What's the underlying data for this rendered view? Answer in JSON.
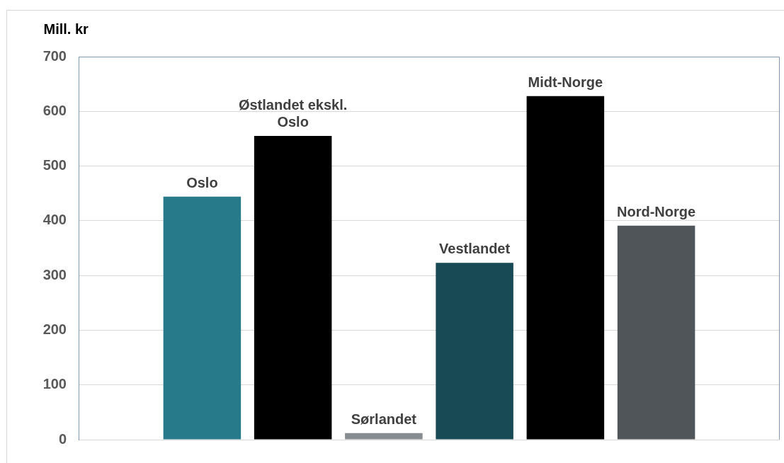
{
  "chart_data": {
    "type": "bar",
    "ylabel": "Mill. kr",
    "categories": [
      "Oslo",
      "Østlandet ekskl. Oslo",
      "Sørlandet",
      "Vestlandet",
      "Midt-Norge",
      "Nord-Norge"
    ],
    "values": [
      444,
      555,
      12,
      323,
      628,
      391
    ],
    "colors": [
      "#277a8a",
      "#000000",
      "#878c90",
      "#184a55",
      "#000000",
      "#505559"
    ],
    "ylim": [
      0,
      700
    ],
    "yticks": [
      0,
      100,
      200,
      300,
      400,
      500,
      600,
      700
    ],
    "grid": "y"
  }
}
